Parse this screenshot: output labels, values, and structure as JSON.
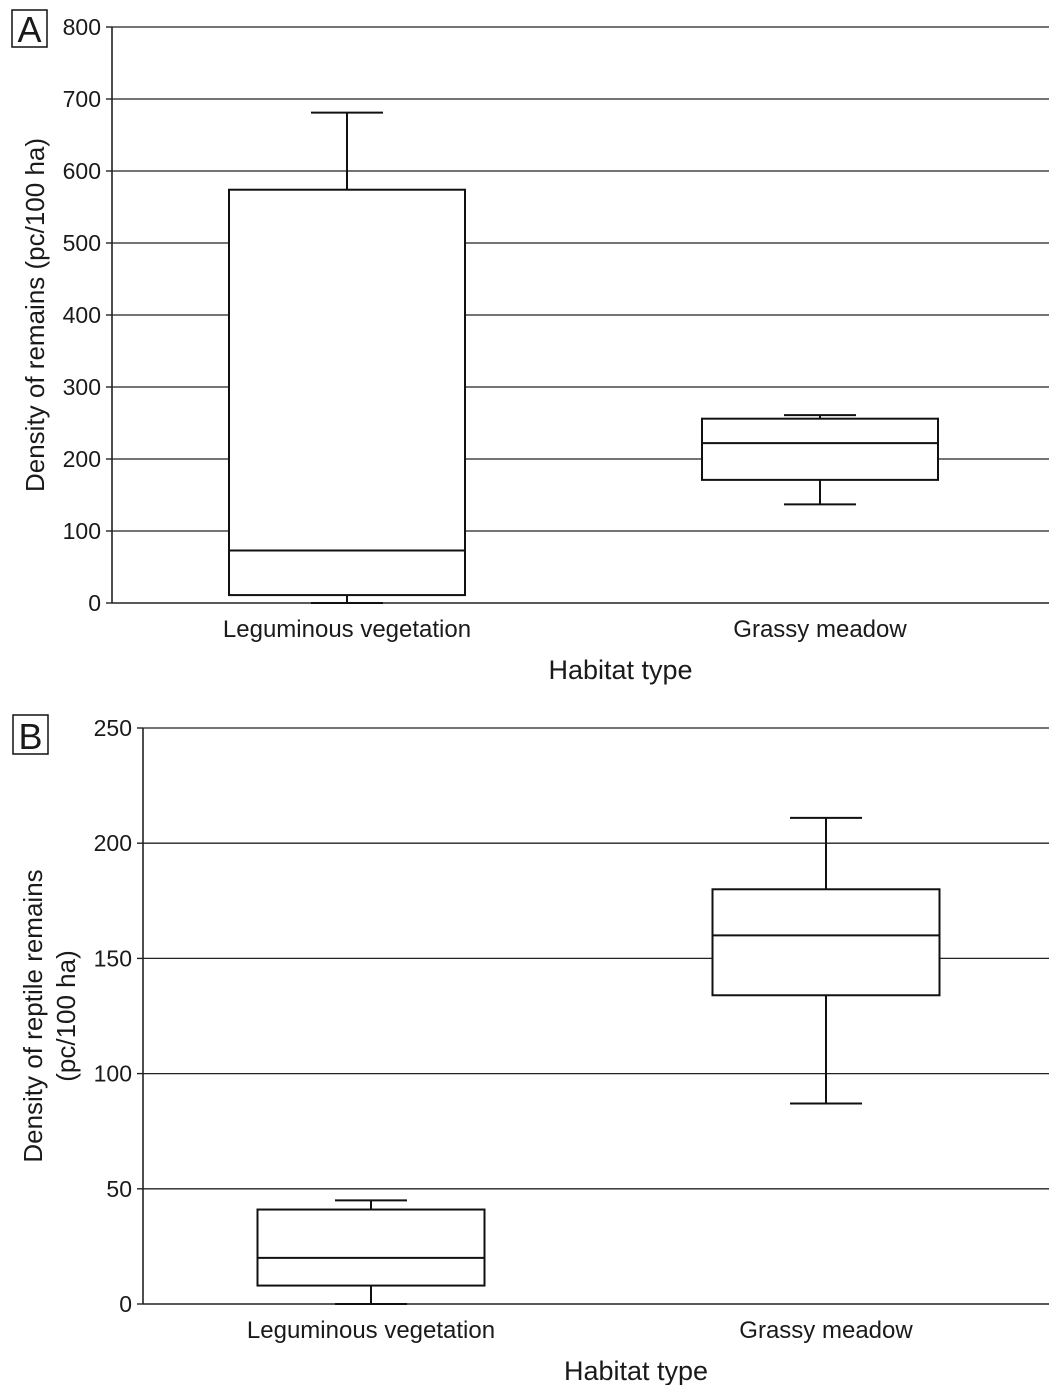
{
  "chart_data": [
    {
      "panel_label": "A",
      "type": "box",
      "xlabel": "Habitat type",
      "ylabel_lines": [
        "Density of remains (pc/100 ha)"
      ],
      "ylim": [
        0,
        800
      ],
      "yticks": [
        0,
        100,
        200,
        300,
        400,
        500,
        600,
        700,
        800
      ],
      "grid": true,
      "categories": [
        "Leguminous vegetation",
        "Grassy meadow"
      ],
      "boxes": [
        {
          "min": 0,
          "q1": 11,
          "median": 73,
          "q3": 574,
          "max": 681
        },
        {
          "min": 137,
          "q1": 171,
          "median": 222,
          "q3": 256,
          "max": 261
        }
      ]
    },
    {
      "panel_label": "B",
      "type": "box",
      "xlabel": "Habitat type",
      "ylabel_lines": [
        "Density of reptile remains",
        "(pc/100 ha)"
      ],
      "ylim": [
        0,
        250
      ],
      "yticks": [
        0,
        50,
        100,
        150,
        200,
        250
      ],
      "grid": true,
      "categories": [
        "Leguminous vegetation",
        "Grassy meadow"
      ],
      "boxes": [
        {
          "min": 0,
          "q1": 8,
          "median": 20,
          "q3": 41,
          "max": 45
        },
        {
          "min": 87,
          "q1": 134,
          "median": 160,
          "q3": 180,
          "max": 211
        }
      ]
    }
  ]
}
